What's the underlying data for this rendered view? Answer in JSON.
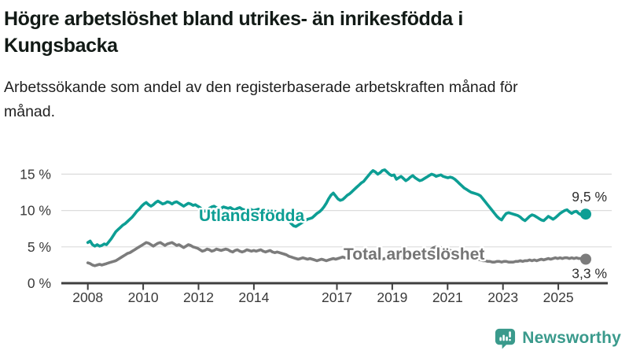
{
  "header": {
    "title": "Högre arbetslöshet bland utrikes- än inrikesfödda i Kungsbacka",
    "subtitle": "Arbetssökande som andel av den registerbaserade arbetskraften månad för månad."
  },
  "chart_data": {
    "type": "line",
    "title": "Högre arbetslöshet bland utrikes- än inrikesfödda i Kungsbacka",
    "subtitle": "Arbetssökande som andel av den registerbaserade arbetskraften månad för månad.",
    "unit": "%",
    "x_domain": [
      "2008-01",
      "2025-10"
    ],
    "x_frequency": "monthly",
    "ylim": [
      0,
      16.5
    ],
    "grid": "horizontal",
    "legend_position": "inline-labels",
    "y_ticks": [
      {
        "v": 15,
        "label": "15 %"
      },
      {
        "v": 10,
        "label": "10 %"
      },
      {
        "v": 5,
        "label": "5 %"
      },
      {
        "v": 0,
        "label": "0 %"
      }
    ],
    "x_ticks": [
      {
        "year": 2008,
        "label": "2008"
      },
      {
        "year": 2010,
        "label": "2010"
      },
      {
        "year": 2012,
        "label": "2012"
      },
      {
        "year": 2014,
        "label": "2014"
      },
      {
        "year": 2017,
        "label": "2017"
      },
      {
        "year": 2019,
        "label": "2019"
      },
      {
        "year": 2021,
        "label": "2021"
      },
      {
        "year": 2023,
        "label": "2023"
      },
      {
        "year": 2025,
        "label": "2025"
      }
    ],
    "series": [
      {
        "name": "Utlandsfödda",
        "color": "#0d9e94",
        "end_label": "9,5 %",
        "end_value": 9.5,
        "values": [
          5.6,
          5.8,
          5.3,
          5.1,
          5.3,
          5.1,
          5.2,
          5.4,
          5.3,
          5.7,
          6.1,
          6.6,
          7.1,
          7.4,
          7.7,
          8.0,
          8.2,
          8.5,
          8.8,
          9.1,
          9.5,
          9.9,
          10.2,
          10.6,
          10.9,
          11.1,
          10.8,
          10.6,
          10.8,
          11.1,
          11.3,
          11.1,
          10.9,
          11.0,
          11.2,
          11.1,
          10.9,
          11.1,
          11.2,
          11.0,
          10.8,
          10.6,
          10.8,
          11.0,
          10.9,
          10.7,
          10.8,
          10.6,
          10.4,
          10.1,
          9.9,
          10.0,
          10.3,
          10.5,
          10.6,
          10.4,
          10.2,
          10.3,
          10.5,
          10.4,
          10.3,
          10.4,
          10.2,
          10.1,
          10.3,
          10.4,
          10.2,
          10.1,
          10.2,
          10.3,
          10.1,
          10.0,
          10.1,
          10.2,
          10.0,
          9.9,
          10.0,
          10.1,
          9.9,
          9.8,
          9.9,
          9.7,
          9.6,
          9.5,
          9.3,
          9.0,
          8.6,
          8.2,
          7.9,
          7.8,
          8.0,
          8.2,
          8.4,
          8.6,
          8.8,
          8.9,
          9.0,
          9.3,
          9.6,
          9.8,
          10.1,
          10.5,
          11.0,
          11.6,
          12.1,
          12.4,
          12.0,
          11.6,
          11.4,
          11.5,
          11.8,
          12.1,
          12.3,
          12.6,
          12.9,
          13.2,
          13.5,
          13.8,
          14.0,
          14.4,
          14.8,
          15.2,
          15.5,
          15.3,
          15.0,
          15.2,
          15.5,
          15.6,
          15.3,
          15.0,
          14.8,
          14.9,
          14.3,
          14.5,
          14.7,
          14.4,
          14.1,
          14.3,
          14.6,
          14.8,
          14.5,
          14.3,
          14.1,
          14.2,
          14.4,
          14.6,
          14.8,
          15.0,
          14.9,
          14.7,
          14.8,
          14.9,
          14.7,
          14.6,
          14.5,
          14.6,
          14.5,
          14.3,
          14.0,
          13.7,
          13.4,
          13.1,
          12.9,
          12.7,
          12.5,
          12.4,
          12.3,
          12.2,
          12.0,
          11.6,
          11.2,
          10.8,
          10.4,
          10.0,
          9.6,
          9.2,
          8.9,
          8.7,
          9.2,
          9.6,
          9.7,
          9.6,
          9.5,
          9.4,
          9.3,
          9.1,
          8.8,
          8.6,
          8.9,
          9.2,
          9.4,
          9.3,
          9.1,
          8.9,
          8.7,
          8.6,
          8.9,
          9.2,
          9.0,
          8.8,
          9.0,
          9.3,
          9.6,
          9.8,
          10.0,
          10.1,
          9.8,
          9.6,
          9.8,
          9.9,
          9.6,
          9.4,
          9.6,
          9.5
        ]
      },
      {
        "name": "Total arbetslöshet",
        "color": "#7c7c7c",
        "label_color": "#757575",
        "end_label": "3,3 %",
        "end_value": 3.3,
        "values": [
          2.8,
          2.7,
          2.5,
          2.4,
          2.5,
          2.6,
          2.5,
          2.6,
          2.7,
          2.8,
          2.9,
          3.0,
          3.1,
          3.3,
          3.5,
          3.7,
          3.9,
          4.1,
          4.2,
          4.4,
          4.6,
          4.8,
          5.0,
          5.2,
          5.4,
          5.6,
          5.5,
          5.3,
          5.1,
          5.3,
          5.5,
          5.6,
          5.4,
          5.2,
          5.4,
          5.5,
          5.6,
          5.4,
          5.2,
          5.3,
          5.1,
          4.9,
          5.1,
          5.3,
          5.2,
          5.0,
          4.9,
          4.8,
          4.6,
          4.4,
          4.5,
          4.7,
          4.6,
          4.4,
          4.5,
          4.7,
          4.6,
          4.5,
          4.6,
          4.7,
          4.6,
          4.4,
          4.3,
          4.5,
          4.6,
          4.4,
          4.3,
          4.4,
          4.6,
          4.5,
          4.4,
          4.5,
          4.4,
          4.5,
          4.6,
          4.4,
          4.3,
          4.4,
          4.5,
          4.3,
          4.2,
          4.3,
          4.2,
          4.1,
          4.0,
          3.9,
          3.7,
          3.6,
          3.5,
          3.4,
          3.3,
          3.4,
          3.5,
          3.4,
          3.3,
          3.4,
          3.3,
          3.2,
          3.1,
          3.2,
          3.3,
          3.2,
          3.1,
          3.2,
          3.3,
          3.4,
          3.3,
          3.4,
          3.5,
          3.6,
          3.5,
          3.4,
          3.5,
          3.6,
          3.7,
          3.6,
          3.5,
          3.6,
          3.5,
          3.6,
          3.5,
          3.4,
          3.5,
          3.6,
          3.5,
          3.4,
          3.3,
          3.4,
          3.5,
          3.4,
          3.5,
          3.4,
          3.5,
          3.6,
          3.5,
          3.6,
          3.7,
          3.6,
          3.7,
          3.8,
          3.7,
          3.6,
          3.7,
          3.8,
          3.9,
          4.0,
          4.3,
          4.7,
          4.9,
          5.0,
          5.0,
          4.9,
          4.8,
          4.7,
          4.6,
          4.5,
          4.4,
          4.3,
          4.2,
          4.0,
          3.9,
          3.8,
          3.7,
          3.6,
          3.5,
          3.4,
          3.4,
          3.3,
          3.2,
          3.1,
          3.1,
          3.0,
          3.0,
          2.9,
          2.9,
          3.0,
          3.0,
          2.9,
          3.0,
          3.0,
          2.9,
          2.9,
          2.9,
          3.0,
          3.0,
          3.1,
          3.0,
          3.1,
          3.1,
          3.2,
          3.1,
          3.2,
          3.1,
          3.2,
          3.3,
          3.2,
          3.3,
          3.4,
          3.3,
          3.4,
          3.5,
          3.4,
          3.5,
          3.4,
          3.5,
          3.5,
          3.4,
          3.5,
          3.4,
          3.5,
          3.4,
          3.4,
          3.3,
          3.3
        ]
      }
    ],
    "colors": {
      "grid": "#dcdcdc",
      "axis": "#3f3f3f",
      "axis_text": "#3a3a3a",
      "end_label_text": "#2e2e2e"
    }
  },
  "footer": {
    "brand": "Newsworthy",
    "brand_color": "#3a9a8c"
  }
}
